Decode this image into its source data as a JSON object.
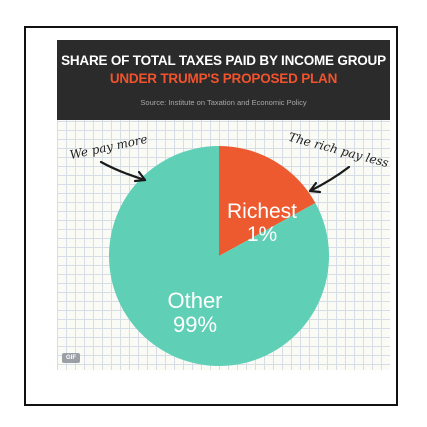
{
  "header": {
    "title": "SHARE OF TOTAL TAXES PAID BY INCOME GROUP",
    "subtitle": "UNDER TRUMP'S PROPOSED PLAN",
    "source": "Source: Institute on Taxation and Economic Policy"
  },
  "annotations": {
    "left": "We pay more",
    "right": "The rich pay less"
  },
  "badge": "GIF",
  "colors": {
    "other": "#5fcfb6",
    "richest": "#ee5a2f",
    "header_bg": "#2b2b2b",
    "subtitle": "#f1532d"
  },
  "chart_data": {
    "type": "pie",
    "title": "SHARE OF TOTAL TAXES PAID BY INCOME GROUP",
    "subtitle": "UNDER TRUMP'S PROPOSED PLAN",
    "slices": [
      {
        "label": "Richest",
        "value_label": "1%",
        "value": 1,
        "color": "#ee5a2f"
      },
      {
        "label": "Other",
        "value_label": "99%",
        "value": 99,
        "color": "#5fcfb6"
      }
    ]
  }
}
